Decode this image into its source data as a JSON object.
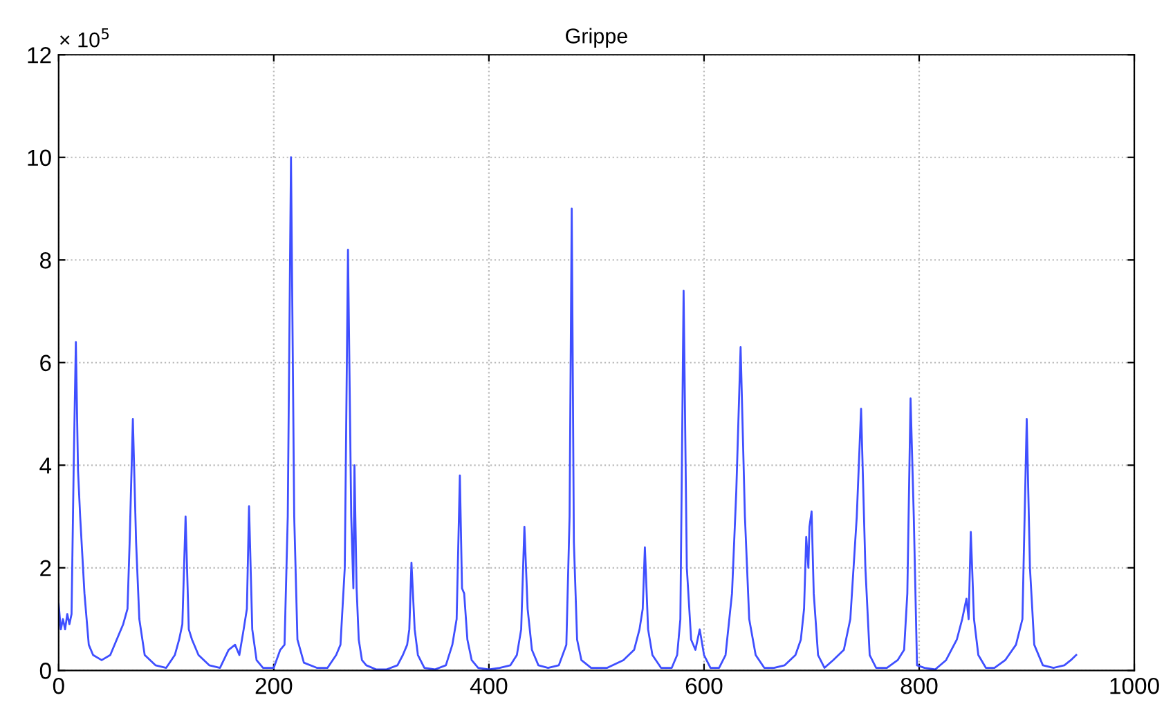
{
  "chart_data": {
    "type": "line",
    "title": "Grippe",
    "annotations": [
      "× 10$^{5}$"
    ],
    "x": [
      0,
      2,
      4,
      6,
      8,
      10,
      12,
      14,
      16,
      18,
      20,
      24,
      28,
      32,
      40,
      48,
      56,
      60,
      64,
      66,
      69,
      72,
      75,
      80,
      90,
      100,
      108,
      112,
      115,
      118,
      121,
      124,
      130,
      140,
      150,
      158,
      164,
      168,
      172,
      175,
      177,
      180,
      184,
      190,
      200,
      206,
      210,
      213,
      216,
      219,
      222,
      228,
      240,
      250,
      258,
      262,
      266,
      269,
      272,
      274,
      275,
      277,
      279,
      282,
      286,
      295,
      305,
      315,
      320,
      324,
      326,
      328,
      331,
      334,
      340,
      350,
      360,
      366,
      370,
      373,
      375,
      377,
      380,
      384,
      390,
      400,
      410,
      420,
      426,
      430,
      433,
      436,
      440,
      446,
      455,
      465,
      472,
      475,
      477,
      479,
      482,
      486,
      495,
      510,
      525,
      535,
      540,
      543,
      545,
      548,
      552,
      560,
      570,
      575,
      578,
      581,
      584,
      588,
      592,
      596,
      600,
      606,
      614,
      620,
      626,
      630,
      634,
      638,
      642,
      648,
      656,
      665,
      675,
      685,
      690,
      693,
      695,
      697,
      698,
      700,
      702,
      706,
      712,
      720,
      730,
      736,
      742,
      746,
      750,
      754,
      760,
      770,
      780,
      786,
      789,
      792,
      795,
      798,
      805,
      815,
      825,
      835,
      840,
      844,
      846,
      848,
      851,
      855,
      862,
      870,
      880,
      890,
      896,
      900,
      903,
      907,
      915,
      925,
      935,
      941,
      946
    ],
    "series": [
      {
        "color": "#3f4fff",
        "values": [
          1.3,
          0.8,
          1.0,
          0.8,
          1.1,
          0.9,
          1.1,
          4.0,
          6.4,
          3.9,
          3.0,
          1.5,
          0.5,
          0.3,
          0.2,
          0.3,
          0.7,
          0.9,
          1.2,
          2.5,
          4.9,
          2.5,
          1.0,
          0.3,
          0.1,
          0.05,
          0.3,
          0.6,
          0.9,
          3.0,
          0.8,
          0.6,
          0.3,
          0.1,
          0.05,
          0.4,
          0.5,
          0.3,
          0.8,
          1.2,
          3.2,
          0.8,
          0.2,
          0.05,
          0.05,
          0.4,
          0.5,
          3.0,
          10.0,
          3.0,
          0.6,
          0.15,
          0.05,
          0.05,
          0.3,
          0.5,
          2.0,
          8.2,
          3.0,
          1.6,
          4.0,
          1.6,
          0.6,
          0.2,
          0.1,
          0.02,
          0.02,
          0.1,
          0.3,
          0.5,
          0.8,
          2.1,
          0.8,
          0.3,
          0.05,
          0.02,
          0.1,
          0.5,
          1.0,
          3.8,
          1.6,
          1.5,
          0.6,
          0.2,
          0.05,
          0.02,
          0.05,
          0.1,
          0.3,
          0.8,
          2.8,
          1.2,
          0.4,
          0.1,
          0.05,
          0.1,
          0.5,
          3.0,
          9.0,
          2.5,
          0.6,
          0.2,
          0.05,
          0.05,
          0.2,
          0.4,
          0.8,
          1.2,
          2.4,
          0.8,
          0.3,
          0.05,
          0.05,
          0.3,
          1.0,
          7.4,
          2.0,
          0.6,
          0.4,
          0.8,
          0.3,
          0.05,
          0.05,
          0.3,
          1.5,
          3.5,
          6.3,
          3.0,
          1.0,
          0.3,
          0.05,
          0.05,
          0.1,
          0.3,
          0.6,
          1.2,
          2.6,
          2.0,
          2.8,
          3.1,
          1.5,
          0.3,
          0.05,
          0.2,
          0.4,
          1.0,
          3.0,
          5.1,
          2.0,
          0.3,
          0.05,
          0.05,
          0.2,
          0.4,
          1.5,
          5.3,
          3.0,
          0.1,
          0.05,
          0.02,
          0.2,
          0.6,
          1.0,
          1.4,
          1.0,
          2.7,
          1.0,
          0.3,
          0.05,
          0.05,
          0.2,
          0.5,
          1.0,
          4.9,
          2.0,
          0.5,
          0.1,
          0.05,
          0.1,
          0.2,
          0.3
        ]
      }
    ],
    "xlim": [
      0,
      1000
    ],
    "ylim": [
      0,
      12
    ],
    "xticks": [
      0,
      200,
      400,
      600,
      800,
      1000
    ],
    "yticks": [
      0,
      2,
      4,
      6,
      8,
      10,
      12
    ],
    "grid": true
  }
}
